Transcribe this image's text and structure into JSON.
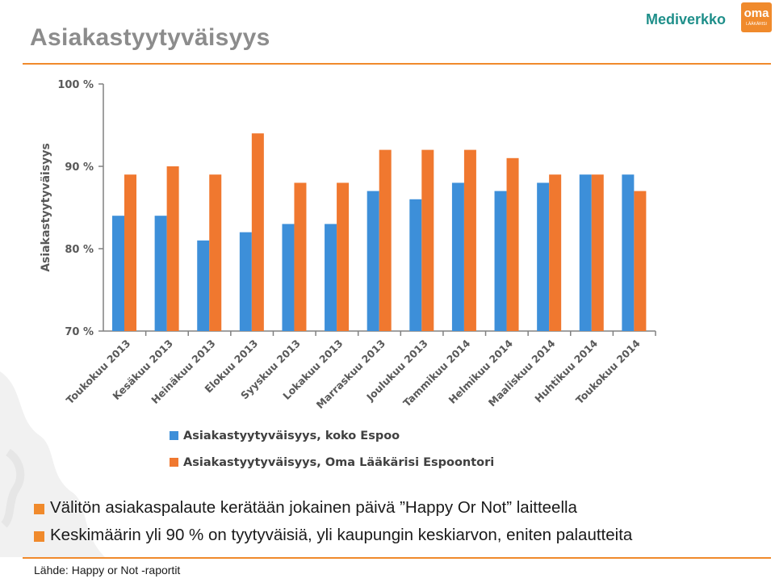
{
  "page": {
    "title": "Asiakastyytyväisyys",
    "logos": {
      "mediverkko": "Mediverkko",
      "oma": "oma",
      "oma_sub": "LÄÄKÄRISI"
    },
    "bullets": [
      "Välitön asiakaspalaute kerätään jokainen päivä ”Happy Or Not” laitteella",
      "Keskimäärin yli 90 % on tyytyväisiä, yli kaupungin keskiarvon, eniten palautteita"
    ],
    "source": "Lähde: Happy or Not -raportit"
  },
  "colors": {
    "accent": "#f08a2c",
    "title": "#8c8c8c",
    "series1": "#3d8fd9",
    "series2": "#f0782f",
    "axis": "#808080"
  },
  "chart_data": {
    "type": "bar",
    "ylabel": "Asiakastyytyväisyys",
    "ylim": [
      70,
      100
    ],
    "yticks": [
      "70 %",
      "80 %",
      "90 %",
      "100 %"
    ],
    "grid": false,
    "legend_position": "bottom",
    "categories": [
      "Toukokuu 2013",
      "Kesäkuu 2013",
      "Heinäkuu 2013",
      "Elokuu 2013",
      "Syyskuu 2013",
      "Lokakuu 2013",
      "Marraskuu 2013",
      "Joulukuu 2013",
      "Tammikuu 2014",
      "Helmikuu 2014",
      "Maaliskuu 2014",
      "Huhtikuu 2014",
      "Toukokuu 2014"
    ],
    "series": [
      {
        "name": "Asiakastyytyväisyys, koko Espoo",
        "values": [
          84,
          84,
          81,
          82,
          83,
          83,
          87,
          86,
          88,
          87,
          88,
          89,
          89
        ]
      },
      {
        "name": "Asiakastyytyväisyys, Oma Lääkärisi Espoontori",
        "values": [
          89,
          90,
          89,
          94,
          88,
          88,
          92,
          92,
          92,
          91,
          89,
          89,
          87
        ]
      }
    ]
  }
}
